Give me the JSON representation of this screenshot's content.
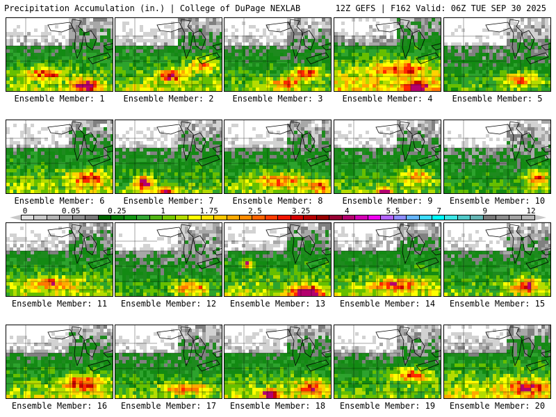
{
  "header": {
    "left_title": "Precipitation Accumulation (in.) | College of DuPage NEXLAB",
    "right_title": "12Z GEFS | F162 Valid: 06Z TUE SEP 30 2025"
  },
  "panel_label_prefix": "Ensemble Member:",
  "members": [
    {
      "label": "Ensemble Member: 1",
      "base_rain": 0.55,
      "hotspots": [
        {
          "rx": 0.35,
          "ry": 0.72,
          "sx": 0.18,
          "sy": 0.08,
          "a": 0.35
        },
        {
          "rx": 0.72,
          "ry": 0.88,
          "sx": 0.12,
          "sy": 0.08,
          "a": 0.45
        }
      ]
    },
    {
      "label": "Ensemble Member: 2",
      "base_rain": 0.55,
      "hotspots": [
        {
          "rx": 0.5,
          "ry": 0.75,
          "sx": 0.12,
          "sy": 0.08,
          "a": 0.45
        },
        {
          "rx": 0.8,
          "ry": 0.6,
          "sx": 0.15,
          "sy": 0.1,
          "a": 0.3
        }
      ]
    },
    {
      "label": "Ensemble Member: 3",
      "base_rain": 0.5,
      "hotspots": [
        {
          "rx": 0.75,
          "ry": 0.72,
          "sx": 0.15,
          "sy": 0.08,
          "a": 0.4
        },
        {
          "rx": 0.55,
          "ry": 0.85,
          "sx": 0.15,
          "sy": 0.08,
          "a": 0.3
        }
      ]
    },
    {
      "label": "Ensemble Member: 4",
      "base_rain": 0.65,
      "hotspots": [
        {
          "rx": 0.6,
          "ry": 0.65,
          "sx": 0.25,
          "sy": 0.1,
          "a": 0.3
        },
        {
          "rx": 0.75,
          "ry": 0.9,
          "sx": 0.1,
          "sy": 0.06,
          "a": 0.4
        }
      ]
    },
    {
      "label": "Ensemble Member: 5",
      "base_rain": 0.45,
      "hotspots": [
        {
          "rx": 0.7,
          "ry": 0.8,
          "sx": 0.2,
          "sy": 0.1,
          "a": 0.35
        }
      ]
    },
    {
      "label": "Ensemble Member: 6",
      "base_rain": 0.55,
      "hotspots": [
        {
          "rx": 0.75,
          "ry": 0.75,
          "sx": 0.2,
          "sy": 0.1,
          "a": 0.35
        }
      ]
    },
    {
      "label": "Ensemble Member: 7",
      "base_rain": 0.5,
      "hotspots": [
        {
          "rx": 0.25,
          "ry": 0.82,
          "sx": 0.08,
          "sy": 0.1,
          "a": 0.5
        },
        {
          "rx": 0.45,
          "ry": 0.95,
          "sx": 0.08,
          "sy": 0.08,
          "a": 0.4
        }
      ]
    },
    {
      "label": "Ensemble Member: 8",
      "base_rain": 0.5,
      "hotspots": [
        {
          "rx": 0.5,
          "ry": 0.78,
          "sx": 0.25,
          "sy": 0.1,
          "a": 0.35
        },
        {
          "rx": 0.88,
          "ry": 0.86,
          "sx": 0.08,
          "sy": 0.1,
          "a": 0.35
        }
      ]
    },
    {
      "label": "Ensemble Member: 9",
      "base_rain": 0.5,
      "hotspots": [
        {
          "rx": 0.45,
          "ry": 0.95,
          "sx": 0.06,
          "sy": 0.06,
          "a": 0.55
        },
        {
          "rx": 0.75,
          "ry": 0.72,
          "sx": 0.15,
          "sy": 0.12,
          "a": 0.3
        }
      ]
    },
    {
      "label": "Ensemble Member: 10",
      "base_rain": 0.45,
      "hotspots": [
        {
          "rx": 0.85,
          "ry": 0.75,
          "sx": 0.12,
          "sy": 0.15,
          "a": 0.4
        }
      ]
    },
    {
      "label": "Ensemble Member: 11",
      "base_rain": 0.55,
      "hotspots": [
        {
          "rx": 0.4,
          "ry": 0.78,
          "sx": 0.22,
          "sy": 0.08,
          "a": 0.3
        }
      ]
    },
    {
      "label": "Ensemble Member: 12",
      "base_rain": 0.45,
      "hotspots": [
        {
          "rx": 0.7,
          "ry": 0.85,
          "sx": 0.18,
          "sy": 0.1,
          "a": 0.35
        }
      ]
    },
    {
      "label": "Ensemble Member: 13",
      "base_rain": 0.55,
      "hotspots": [
        {
          "rx": 0.2,
          "ry": 0.52,
          "sx": 0.05,
          "sy": 0.06,
          "a": 0.5
        },
        {
          "rx": 0.75,
          "ry": 0.9,
          "sx": 0.15,
          "sy": 0.08,
          "a": 0.45
        }
      ]
    },
    {
      "label": "Ensemble Member: 14",
      "base_rain": 0.55,
      "hotspots": [
        {
          "rx": 0.55,
          "ry": 0.8,
          "sx": 0.22,
          "sy": 0.08,
          "a": 0.35
        }
      ]
    },
    {
      "label": "Ensemble Member: 15",
      "base_rain": 0.5,
      "hotspots": [
        {
          "rx": 0.75,
          "ry": 0.82,
          "sx": 0.15,
          "sy": 0.1,
          "a": 0.4
        }
      ]
    },
    {
      "label": "Ensemble Member: 16",
      "base_rain": 0.55,
      "hotspots": [
        {
          "rx": 0.7,
          "ry": 0.75,
          "sx": 0.18,
          "sy": 0.1,
          "a": 0.4
        }
      ]
    },
    {
      "label": "Ensemble Member: 17",
      "base_rain": 0.5,
      "hotspots": [
        {
          "rx": 0.65,
          "ry": 0.82,
          "sx": 0.22,
          "sy": 0.08,
          "a": 0.35
        }
      ]
    },
    {
      "label": "Ensemble Member: 18",
      "base_rain": 0.55,
      "hotspots": [
        {
          "rx": 0.4,
          "ry": 0.9,
          "sx": 0.08,
          "sy": 0.06,
          "a": 0.5
        },
        {
          "rx": 0.8,
          "ry": 0.8,
          "sx": 0.15,
          "sy": 0.1,
          "a": 0.35
        }
      ]
    },
    {
      "label": "Ensemble Member: 19",
      "base_rain": 0.5,
      "hotspots": [
        {
          "rx": 0.7,
          "ry": 0.65,
          "sx": 0.2,
          "sy": 0.1,
          "a": 0.4
        }
      ]
    },
    {
      "label": "Ensemble Member: 20",
      "base_rain": 0.6,
      "hotspots": [
        {
          "rx": 0.75,
          "ry": 0.8,
          "sx": 0.2,
          "sy": 0.1,
          "a": 0.3
        }
      ]
    }
  ],
  "colorbar": {
    "tick_labels": [
      {
        "value": 0,
        "text": "0"
      },
      {
        "value": 0.05,
        "text": "0.05"
      },
      {
        "value": 0.25,
        "text": "0.25"
      },
      {
        "value": 1,
        "text": "1"
      },
      {
        "value": 1.75,
        "text": "1.75"
      },
      {
        "value": 2.5,
        "text": "2.5"
      },
      {
        "value": 3.25,
        "text": "3.25"
      },
      {
        "value": 4,
        "text": "4"
      },
      {
        "value": 5.5,
        "text": "5.5"
      },
      {
        "value": 7,
        "text": "7"
      },
      {
        "value": 9,
        "text": "9"
      },
      {
        "value": 12,
        "text": "12"
      }
    ],
    "colors": [
      "#dcdcdc",
      "#c8c8c8",
      "#b4b4b4",
      "#a0a0a0",
      "#8c8c8c",
      "#787878",
      "#006400",
      "#0a7d0a",
      "#149614",
      "#32a532",
      "#50b414",
      "#78c800",
      "#b4dc00",
      "#ffff00",
      "#ffe100",
      "#ffc800",
      "#ffaa00",
      "#ff8c00",
      "#ff6400",
      "#ff3c00",
      "#f01400",
      "#d20000",
      "#b40000",
      "#960000",
      "#960032",
      "#b4006e",
      "#d200b4",
      "#f000f0",
      "#b464ff",
      "#8c8cff",
      "#64b4ff",
      "#3cdcff",
      "#00ffff",
      "#3ce6e6",
      "#50c8c8",
      "#64b4b4",
      "#787878",
      "#8c8c8c",
      "#a0a0a0",
      "#b4b4b4"
    ]
  }
}
